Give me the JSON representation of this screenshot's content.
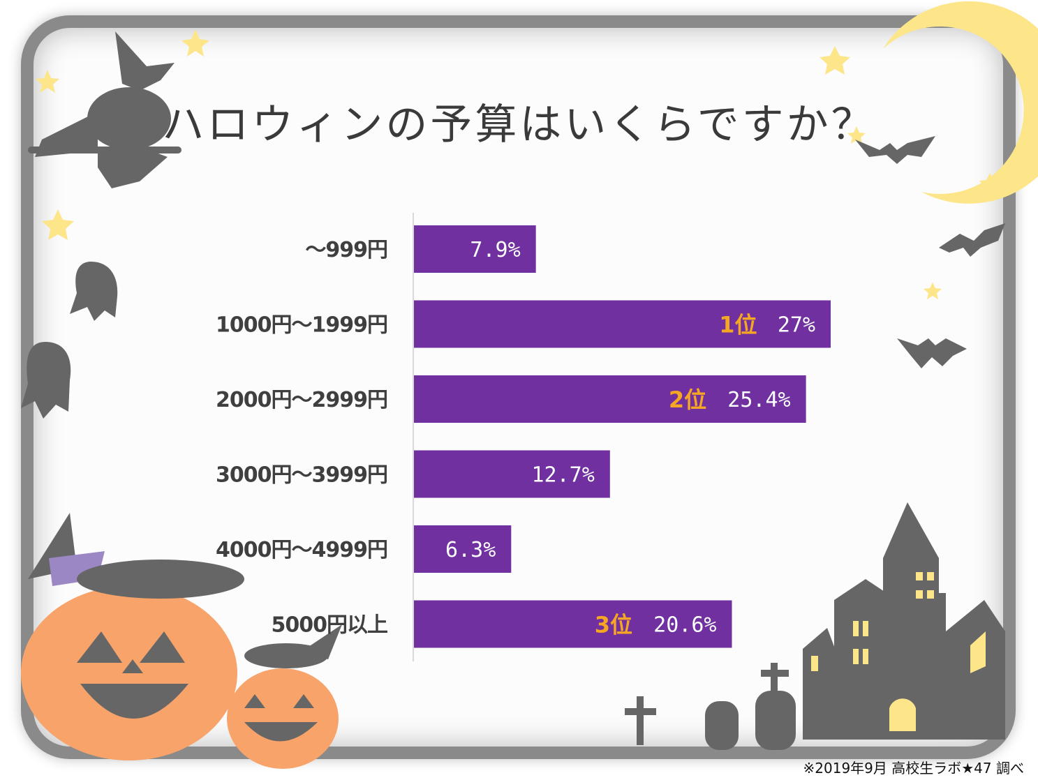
{
  "title": "ハロウィンの予算はいくらですか？",
  "source": "※2019年9月 高校生ラボ★47 調べ",
  "colors": {
    "bar": "#7030a0",
    "rank": "#f5a623",
    "pumpkin": "#f7a36a",
    "silhouette": "#666666",
    "moon": "#fde58a"
  },
  "chart_data": {
    "type": "bar",
    "orientation": "horizontal",
    "categories": [
      "〜999円",
      "1000円〜1999円",
      "2000円〜2999円",
      "3000円〜3999円",
      "4000円〜4999円",
      "5000円以上"
    ],
    "values": [
      7.9,
      27,
      25.4,
      12.7,
      6.3,
      20.6
    ],
    "value_labels": [
      "7.9%",
      "27%",
      "25.4%",
      "12.7%",
      "6.3%",
      "20.6%"
    ],
    "ranks": [
      "",
      "1位",
      "2位",
      "",
      "",
      "3位"
    ],
    "xlim": [
      0,
      27
    ],
    "unit": "%"
  }
}
